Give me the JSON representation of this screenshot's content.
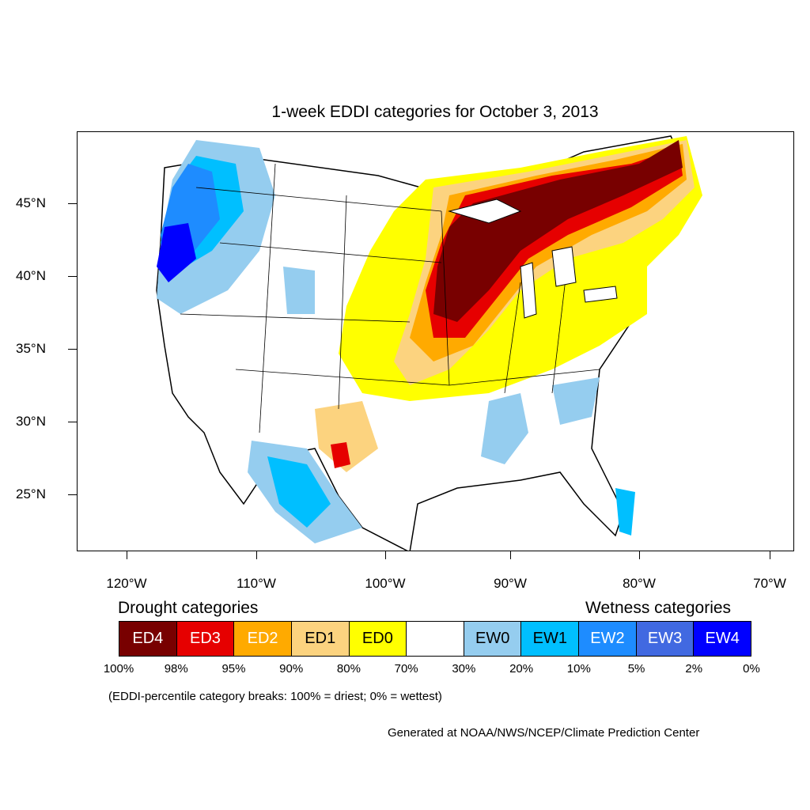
{
  "title": "1-week EDDI categories for October 3, 2013",
  "lat_labels": [
    "45°N",
    "40°N",
    "35°N",
    "30°N",
    "25°N"
  ],
  "lon_labels": [
    "120°W",
    "110°W",
    "100°W",
    "90°W",
    "80°W",
    "70°W"
  ],
  "legend": {
    "drought_heading": "Drought categories",
    "wetness_heading": "Wetness categories",
    "categories": [
      {
        "label": "ED4",
        "color": "#780000",
        "text_color": "#ffffff"
      },
      {
        "label": "ED3",
        "color": "#e60000",
        "text_color": "#ffffff"
      },
      {
        "label": "ED2",
        "color": "#ffaa00",
        "text_color": "#ffffff"
      },
      {
        "label": "ED1",
        "color": "#fcd37f",
        "text_color": "#000000"
      },
      {
        "label": "ED0",
        "color": "#ffff00",
        "text_color": "#000000"
      },
      {
        "label": "",
        "color": "#ffffff",
        "text_color": "#000000"
      },
      {
        "label": "EW0",
        "color": "#95cdef",
        "text_color": "#000000"
      },
      {
        "label": "EW1",
        "color": "#00bfff",
        "text_color": "#000000"
      },
      {
        "label": "EW2",
        "color": "#1e8cff",
        "text_color": "#ffffff"
      },
      {
        "label": "EW3",
        "color": "#4169e1",
        "text_color": "#ffffff"
      },
      {
        "label": "EW4",
        "color": "#0000ff",
        "text_color": "#ffffff"
      }
    ],
    "percentiles": [
      "100%",
      "98%",
      "95%",
      "90%",
      "80%",
      "70%",
      "30%",
      "20%",
      "10%",
      "5%",
      "2%",
      "0%"
    ]
  },
  "note": "(EDDI-percentile category breaks: 100% = driest; 0% = wettest)",
  "credit": "Generated at NOAA/NWS/NCEP/Climate Prediction Center"
}
